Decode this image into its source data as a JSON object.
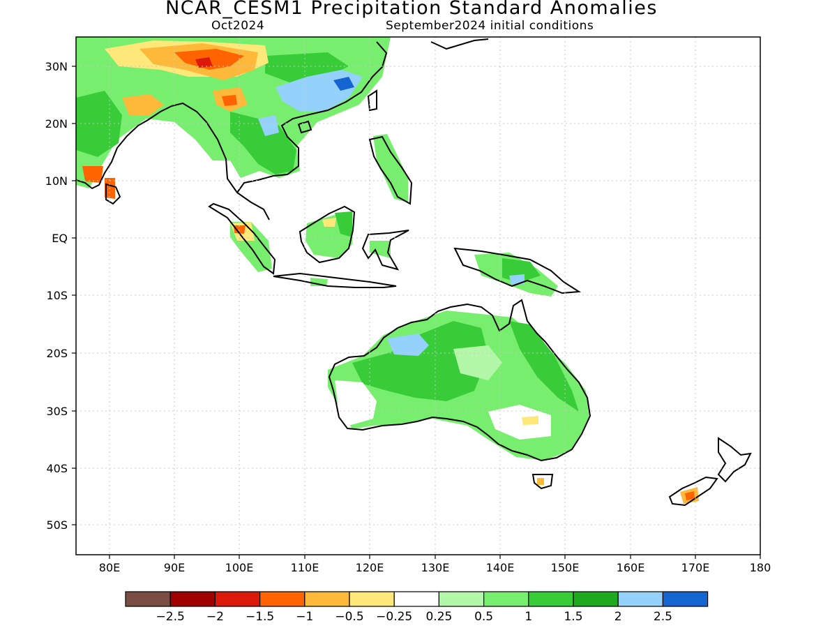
{
  "title": "NCAR_CESM1 Precipitation Standard Anomalies",
  "subtitle_left": "Oct2024",
  "subtitle_right": "September2024 initial conditions",
  "lat_labels": [
    "30N",
    "20N",
    "10N",
    "EQ",
    "10S",
    "20S",
    "30S",
    "40S",
    "50S"
  ],
  "lon_labels": [
    "80E",
    "90E",
    "100E",
    "110E",
    "120E",
    "130E",
    "140E",
    "150E",
    "160E",
    "170E",
    "180"
  ],
  "colorbar": {
    "colors": [
      "#7a4e44",
      "#a00000",
      "#dd1a0a",
      "#ff6400",
      "#ffb93a",
      "#ffe87a",
      "#ffffff",
      "#b3f7a8",
      "#78ee6e",
      "#39cc39",
      "#1eaa1e",
      "#94d1fb",
      "#1464d2"
    ],
    "labels": [
      "−2.5",
      "−2",
      "−1.5",
      "−1",
      "−0.5",
      "−0.25",
      "0.25",
      "0.5",
      "1",
      "1.5",
      "2",
      "2.5"
    ]
  }
}
